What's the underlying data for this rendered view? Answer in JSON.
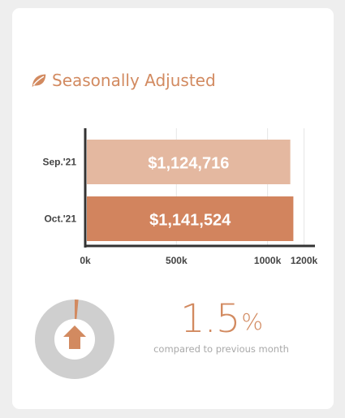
{
  "header": {
    "title": "Seasonally Adjusted",
    "icon": "leaf-icon"
  },
  "colors": {
    "accent": "#d28a60",
    "bar_light": "#e4b8a0",
    "bar_dark": "#d2845e",
    "ring": "#cfcfcf"
  },
  "chart_data": {
    "type": "bar",
    "orientation": "horizontal",
    "categories": [
      "Sep.'21",
      "Oct.'21"
    ],
    "values": [
      1124716,
      1141524
    ],
    "value_labels": [
      "$1,124,716",
      "$1,141,524"
    ],
    "xticks": [
      {
        "value": 0,
        "label": "0k"
      },
      {
        "value": 500000,
        "label": "500k"
      },
      {
        "value": 1000000,
        "label": "1000k"
      },
      {
        "value": 1200000,
        "label": "1200k"
      }
    ],
    "xlim": [
      0,
      1260000
    ],
    "grid": true
  },
  "summary": {
    "change_value": "1.5",
    "change_unit": "%",
    "caption": "compared to previous month",
    "direction_icon": "arrow-up-icon",
    "ring_fraction": 0.015
  }
}
